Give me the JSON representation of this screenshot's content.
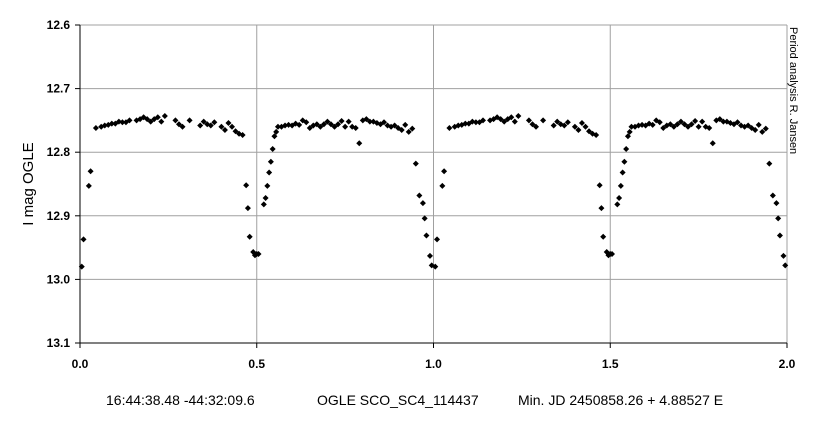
{
  "chart_data": {
    "type": "scatter",
    "ylabel": "I mag OGLE",
    "xlim": [
      0.0,
      2.0
    ],
    "ylim": [
      12.6,
      13.1
    ],
    "y_inverted": true,
    "grid": true,
    "x_ticks": [
      "0.0",
      "0.5",
      "1.0",
      "1.5",
      "2.0"
    ],
    "y_ticks": [
      "12.6",
      "12.7",
      "12.8",
      "12.9",
      "13.0",
      "13.1"
    ],
    "side_note": "Period analysis R. Jansen",
    "marker": "diamond",
    "marker_color": "#000000",
    "series": [
      {
        "x": [
          0.005,
          0.01,
          0.025,
          0.03,
          0.045,
          0.06,
          0.07,
          0.08,
          0.09,
          0.1,
          0.11,
          0.12,
          0.13,
          0.14,
          0.16,
          0.17,
          0.18,
          0.19,
          0.2,
          0.21,
          0.22,
          0.23,
          0.24,
          0.27,
          0.28,
          0.29,
          0.31,
          0.34,
          0.35,
          0.36,
          0.37,
          0.38,
          0.4,
          0.41,
          0.42,
          0.43,
          0.44,
          0.45,
          0.46,
          0.47,
          0.475,
          0.48,
          0.49,
          0.495,
          0.5,
          0.505,
          0.52,
          0.525,
          0.53,
          0.535,
          0.54,
          0.545,
          0.55,
          0.555,
          0.56,
          0.57,
          0.58,
          0.59,
          0.6,
          0.61,
          0.62,
          0.63,
          0.64,
          0.65,
          0.66,
          0.67,
          0.68,
          0.69,
          0.7,
          0.71,
          0.72,
          0.73,
          0.74,
          0.75,
          0.76,
          0.77,
          0.78,
          0.79,
          0.8,
          0.81,
          0.82,
          0.83,
          0.84,
          0.85,
          0.86,
          0.87,
          0.88,
          0.89,
          0.9,
          0.91,
          0.92,
          0.93,
          0.94,
          0.95,
          0.96,
          0.97,
          0.975,
          0.98,
          0.99,
          0.995
        ],
        "y": [
          12.98,
          12.937,
          12.853,
          12.83,
          12.762,
          12.76,
          12.758,
          12.757,
          12.755,
          12.755,
          12.752,
          12.753,
          12.753,
          12.75,
          12.75,
          12.748,
          12.745,
          12.748,
          12.752,
          12.748,
          12.745,
          12.752,
          12.743,
          12.75,
          12.756,
          12.76,
          12.75,
          12.758,
          12.752,
          12.756,
          12.758,
          12.753,
          12.76,
          12.765,
          12.754,
          12.76,
          12.767,
          12.771,
          12.773,
          12.852,
          12.888,
          12.933,
          12.957,
          12.962,
          12.96,
          12.96,
          12.882,
          12.872,
          12.853,
          12.832,
          12.815,
          12.795,
          12.775,
          12.768,
          12.76,
          12.76,
          12.758,
          12.757,
          12.758,
          12.755,
          12.757,
          12.75,
          12.753,
          12.762,
          12.758,
          12.756,
          12.76,
          12.756,
          12.752,
          12.756,
          12.76,
          12.756,
          12.751,
          12.76,
          12.752,
          12.76,
          12.762,
          12.786,
          12.75,
          12.748,
          12.752,
          12.752,
          12.754,
          12.756,
          12.753,
          12.758,
          12.76,
          12.758,
          12.762,
          12.765,
          12.757,
          12.768,
          12.763,
          12.818,
          12.868,
          12.88,
          12.904,
          12.931,
          12.963,
          12.978
        ]
      }
    ]
  },
  "caption": {
    "coords": "16:44:38.48 -44:32:09.6",
    "star": "OGLE SCO_SC4_114437",
    "ephemeris": "Min. JD 2450858.26 + 4.88527 E"
  }
}
